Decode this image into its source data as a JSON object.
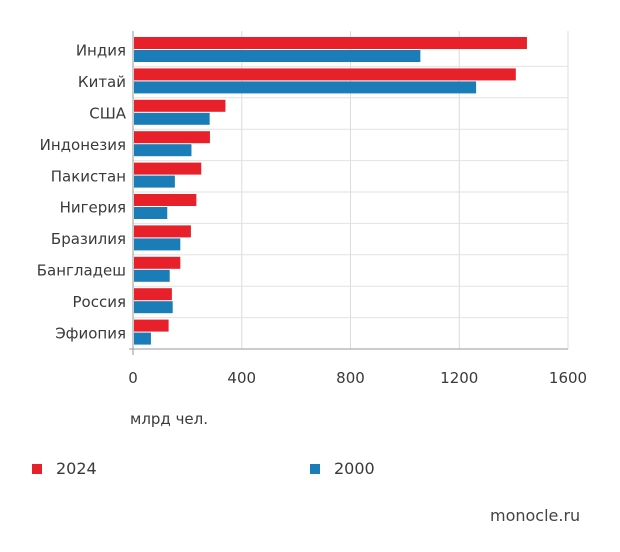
{
  "chart_data": {
    "type": "bar",
    "orientation": "horizontal",
    "categories": [
      "Индия",
      "Китай",
      "США",
      "Индонезия",
      "Пакистан",
      "Нигерия",
      "Бразилия",
      "Бангладеш",
      "Россия",
      "Эфиопия"
    ],
    "series": [
      {
        "name": "2024",
        "color": "#e8202a",
        "values": [
          1449,
          1408,
          340,
          283,
          251,
          233,
          213,
          174,
          143,
          131
        ]
      },
      {
        "name": "2000",
        "color": "#1a7db8",
        "values": [
          1057,
          1262,
          282,
          215,
          154,
          126,
          174,
          135,
          146,
          66
        ]
      }
    ],
    "xlim": [
      0,
      1600
    ],
    "xticks": [
      "0",
      "400",
      "800",
      "1200",
      "1600"
    ],
    "xlabel": "млрд чел.",
    "grid": true,
    "legend": "bottom"
  },
  "source": "monocle.ru"
}
